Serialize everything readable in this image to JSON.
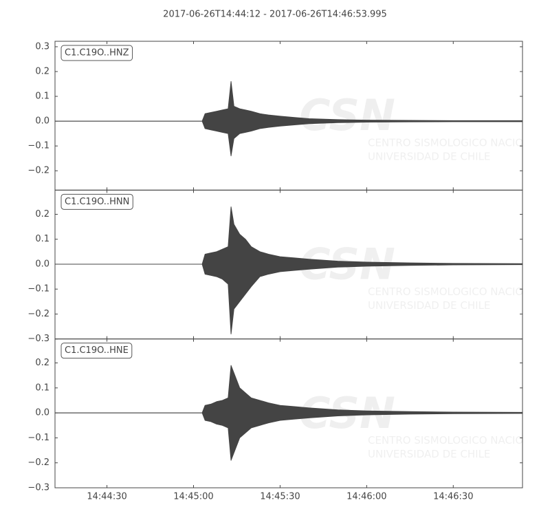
{
  "title": "2017-06-26T14:44:12  -  2017-06-26T14:46:53.995",
  "watermark": {
    "logo": "CSN",
    "line1": "CENTRO SISMOLOGICO NACIONAL",
    "line2": "UNIVERSIDAD DE CHILE"
  },
  "chart_data": [
    {
      "type": "envelope",
      "label": "C1.C19O..HNZ",
      "color": "#444444",
      "x": [
        "14:44:12",
        "14:45:03",
        "14:45:04",
        "14:45:06",
        "14:45:08",
        "14:45:10",
        "14:45:12",
        "14:45:13",
        "14:45:14",
        "14:45:16",
        "14:45:18",
        "14:45:20",
        "14:45:23",
        "14:45:26",
        "14:45:30",
        "14:45:35",
        "14:45:40",
        "14:45:50",
        "14:46:00",
        "14:46:15",
        "14:46:30",
        "14:46:53.995"
      ],
      "series": [
        {
          "values": [
            0,
            0,
            0.03,
            0.035,
            0.04,
            0.045,
            0.05,
            0.16,
            0.06,
            0.05,
            0.045,
            0.04,
            0.03,
            0.025,
            0.02,
            0.015,
            0.01,
            0.006,
            0.004,
            0.003,
            0.002,
            0.002
          ]
        },
        {
          "values": [
            0,
            0,
            -0.03,
            -0.035,
            -0.04,
            -0.045,
            -0.05,
            -0.14,
            -0.07,
            -0.05,
            -0.045,
            -0.04,
            -0.03,
            -0.025,
            -0.02,
            -0.015,
            -0.01,
            -0.006,
            -0.004,
            -0.003,
            -0.002,
            -0.002
          ]
        }
      ],
      "xlim": [
        "14:44:12",
        "14:46:53.995"
      ],
      "xticks": [
        "14:44:30",
        "14:45:00",
        "14:45:30",
        "14:46:00",
        "14:46:30"
      ],
      "ylim": [
        -0.278,
        0.322
      ],
      "yticks": [
        {
          "value": -0.2,
          "label": "−0.2"
        },
        {
          "value": -0.1,
          "label": "−0.1"
        },
        {
          "value": 0,
          "label": "0.0"
        },
        0.1,
        0.2,
        0.3
      ]
    },
    {
      "type": "envelope",
      "label": "C1.C19O..HNN",
      "color": "#444444",
      "x": [
        "14:44:12",
        "14:45:03",
        "14:45:04",
        "14:45:06",
        "14:45:08",
        "14:45:10",
        "14:45:12",
        "14:45:13",
        "14:45:14",
        "14:45:16",
        "14:45:18",
        "14:45:20",
        "14:45:23",
        "14:45:26",
        "14:45:30",
        "14:45:35",
        "14:45:40",
        "14:45:50",
        "14:46:00",
        "14:46:15",
        "14:46:30",
        "14:46:53.995"
      ],
      "series": [
        {
          "values": [
            0,
            0,
            0.04,
            0.045,
            0.05,
            0.06,
            0.07,
            0.23,
            0.16,
            0.12,
            0.1,
            0.07,
            0.05,
            0.04,
            0.03,
            0.025,
            0.02,
            0.012,
            0.008,
            0.005,
            0.003,
            0.002
          ]
        },
        {
          "values": [
            0,
            0,
            -0.04,
            -0.045,
            -0.05,
            -0.06,
            -0.08,
            -0.28,
            -0.18,
            -0.15,
            -0.12,
            -0.09,
            -0.05,
            -0.04,
            -0.03,
            -0.025,
            -0.02,
            -0.012,
            -0.008,
            -0.005,
            -0.003,
            -0.002
          ]
        }
      ],
      "xlim": [
        "14:44:12",
        "14:46:53.995"
      ],
      "xticks": [
        "14:44:30",
        "14:45:00",
        "14:45:30",
        "14:46:00",
        "14:46:30"
      ],
      "ylim": [
        -0.3,
        0.297
      ],
      "yticks": [
        {
          "value": -0.3,
          "label": "−0.3"
        },
        {
          "value": -0.2,
          "label": "−0.2"
        },
        {
          "value": -0.1,
          "label": "−0.1"
        },
        {
          "value": 0,
          "label": "0.0"
        },
        0.1,
        0.2
      ]
    },
    {
      "type": "envelope",
      "label": "C1.C19O..HNE",
      "color": "#444444",
      "x": [
        "14:44:12",
        "14:45:03",
        "14:45:04",
        "14:45:06",
        "14:45:08",
        "14:45:10",
        "14:45:12",
        "14:45:13",
        "14:45:14",
        "14:45:16",
        "14:45:18",
        "14:45:20",
        "14:45:23",
        "14:45:26",
        "14:45:30",
        "14:45:35",
        "14:45:40",
        "14:45:50",
        "14:46:00",
        "14:46:15",
        "14:46:30",
        "14:46:53.995"
      ],
      "series": [
        {
          "values": [
            0,
            0,
            0.03,
            0.035,
            0.045,
            0.05,
            0.06,
            0.19,
            0.16,
            0.1,
            0.08,
            0.06,
            0.05,
            0.04,
            0.03,
            0.025,
            0.02,
            0.012,
            0.008,
            0.005,
            0.003,
            0.002
          ]
        },
        {
          "values": [
            0,
            0,
            -0.03,
            -0.035,
            -0.045,
            -0.05,
            -0.06,
            -0.19,
            -0.16,
            -0.1,
            -0.08,
            -0.06,
            -0.05,
            -0.04,
            -0.03,
            -0.025,
            -0.02,
            -0.012,
            -0.008,
            -0.005,
            -0.003,
            -0.002
          ]
        }
      ],
      "xlim": [
        "14:44:12",
        "14:46:53.995"
      ],
      "xticks": [
        "14:44:30",
        "14:45:00",
        "14:45:30",
        "14:46:00",
        "14:46:30"
      ],
      "ylim": [
        -0.3,
        0.296
      ],
      "yticks": [
        {
          "value": -0.3,
          "label": "−0.3"
        },
        {
          "value": -0.2,
          "label": "−0.2"
        },
        {
          "value": -0.1,
          "label": "−0.1"
        },
        {
          "value": 0,
          "label": "0.0"
        },
        0.1,
        0.2
      ]
    }
  ]
}
